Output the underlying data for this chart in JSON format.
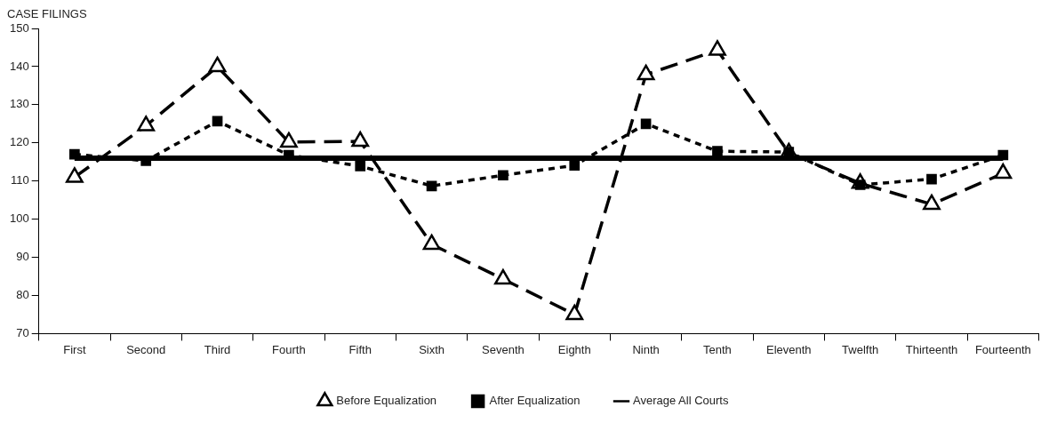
{
  "chart_data": {
    "type": "line",
    "ylabel": "CASE FILINGS",
    "categories": [
      "First",
      "Second",
      "Third",
      "Fourth",
      "Fifth",
      "Sixth",
      "Seventh",
      "Eighth",
      "Ninth",
      "Tenth",
      "Eleventh",
      "Twelfth",
      "Thirteenth",
      "Fourteenth"
    ],
    "series": [
      {
        "name": "Before Equalization",
        "color": "#000000",
        "marker": "triangle",
        "line_style": "dashed",
        "values": [
          111,
          124.5,
          140,
          120.2,
          120.4,
          93.4,
          84.3,
          75,
          137.9,
          144.3,
          117.4,
          109.4,
          103.9,
          112
        ]
      },
      {
        "name": "After Equalization",
        "color": "#000000",
        "marker": "square",
        "line_style": "dotted",
        "values": [
          117,
          115.3,
          125.7,
          116.8,
          113.9,
          108.7,
          111.5,
          114.1,
          125,
          117.8,
          117.6,
          109,
          110.5,
          116.8
        ]
      },
      {
        "name": "Average All Courts",
        "color": "#000000",
        "marker": "none",
        "line_style": "solid",
        "values": [
          116,
          116,
          116,
          116,
          116,
          116,
          116,
          116,
          116,
          116,
          116,
          116,
          116,
          116
        ]
      }
    ],
    "ylim": [
      70,
      150
    ],
    "yticks": [
      70,
      80,
      90,
      100,
      110,
      120,
      130,
      140,
      150
    ],
    "grid": false,
    "legend": "bottom"
  }
}
